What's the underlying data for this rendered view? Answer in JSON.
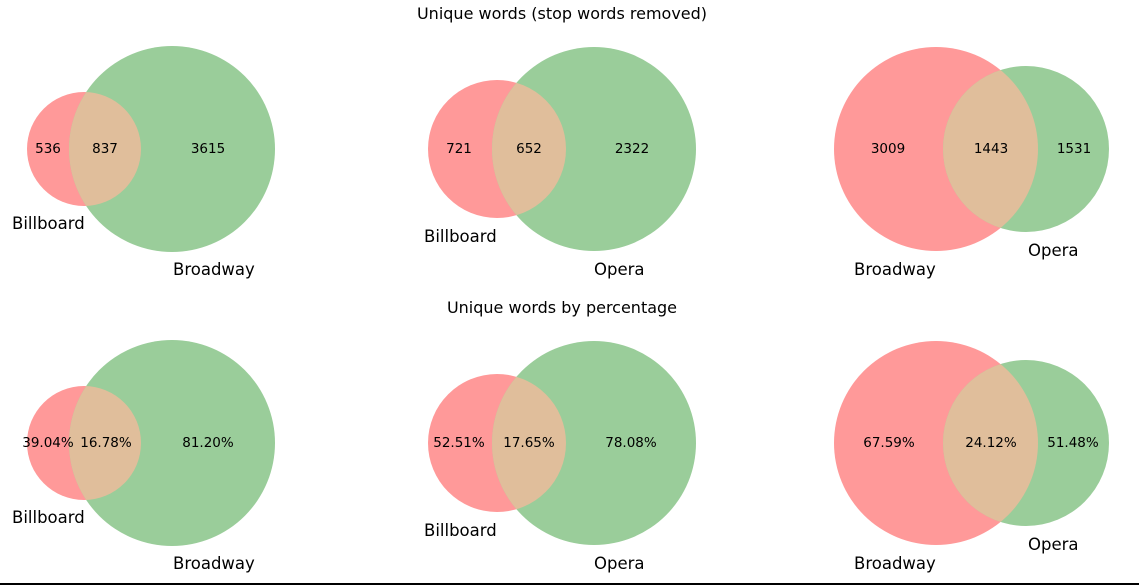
{
  "titles": {
    "row1": "Unique words (stop words removed)",
    "row2": "Unique words by percentage"
  },
  "colors": {
    "set_a": "#ff9999",
    "set_b": "#9acd9a",
    "intersection": "#e0be9b",
    "bottom_rule": "#000000"
  },
  "venns": [
    {
      "row": 1,
      "left_label": "Billboard",
      "right_label": "Broadway",
      "left_only": "536",
      "intersection": "837",
      "right_only": "3615",
      "left_color": "set_a",
      "right_color": "set_b"
    },
    {
      "row": 1,
      "left_label": "Billboard",
      "right_label": "Opera",
      "left_only": "721",
      "intersection": "652",
      "right_only": "2322",
      "left_color": "set_a",
      "right_color": "set_b"
    },
    {
      "row": 1,
      "left_label": "Broadway",
      "right_label": "Opera",
      "left_only": "3009",
      "intersection": "1443",
      "right_only": "1531",
      "left_color": "set_a",
      "right_color": "set_b"
    },
    {
      "row": 2,
      "left_label": "Billboard",
      "right_label": "Broadway",
      "left_only": "39.04%",
      "intersection": "16.78%",
      "right_only": "81.20%",
      "left_color": "set_a",
      "right_color": "set_b"
    },
    {
      "row": 2,
      "left_label": "Billboard",
      "right_label": "Opera",
      "left_only": "52.51%",
      "intersection": "17.65%",
      "right_only": "78.08%",
      "left_color": "set_a",
      "right_color": "set_b"
    },
    {
      "row": 2,
      "left_label": "Broadway",
      "right_label": "Opera",
      "left_only": "67.59%",
      "intersection": "24.12%",
      "right_only": "51.48%",
      "left_color": "set_a",
      "right_color": "set_b"
    }
  ]
}
